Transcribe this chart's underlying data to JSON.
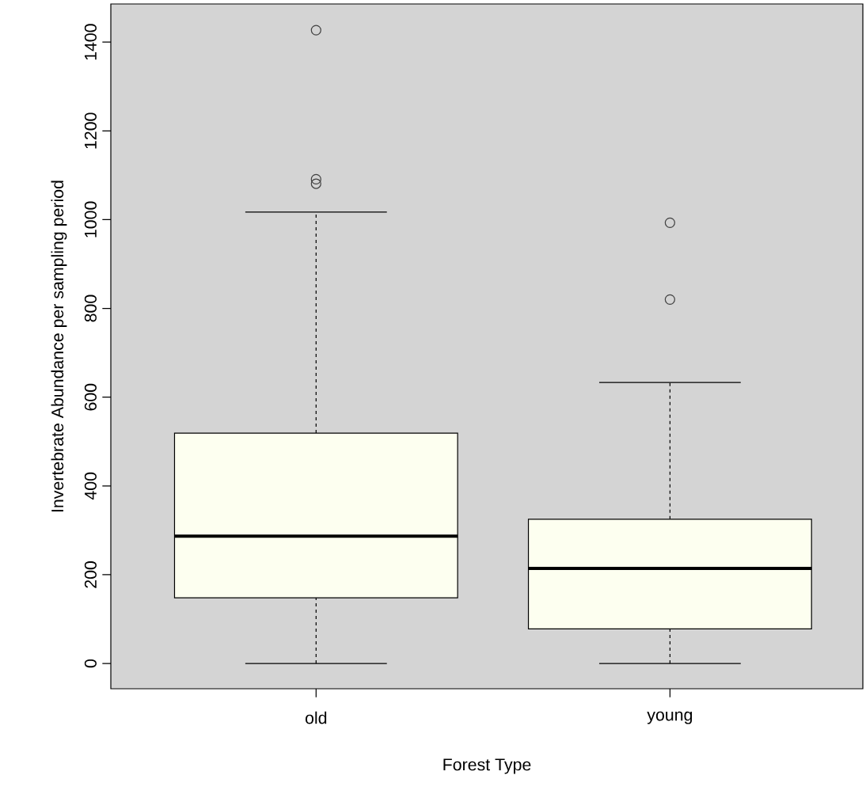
{
  "chart_data": {
    "type": "box",
    "xlabel": "Forest Type",
    "ylabel": "Invertebrate Abundance per sampling period",
    "categories": [
      "old",
      "young"
    ],
    "boxes": [
      {
        "low": 0,
        "q1": 148,
        "median": 287,
        "q3": 519,
        "high": 1017,
        "outliers": [
          1427,
          1091,
          1081
        ]
      },
      {
        "low": 0,
        "q1": 78,
        "median": 214,
        "q3": 325,
        "high": 633,
        "outliers": [
          993,
          820
        ]
      }
    ],
    "color": "#fdfff0",
    "marker": "circle",
    "grid": false,
    "ylim": [
      -57,
      1486
    ],
    "yticks": [
      0,
      200,
      400,
      600,
      800,
      1000,
      1200,
      1400
    ]
  }
}
